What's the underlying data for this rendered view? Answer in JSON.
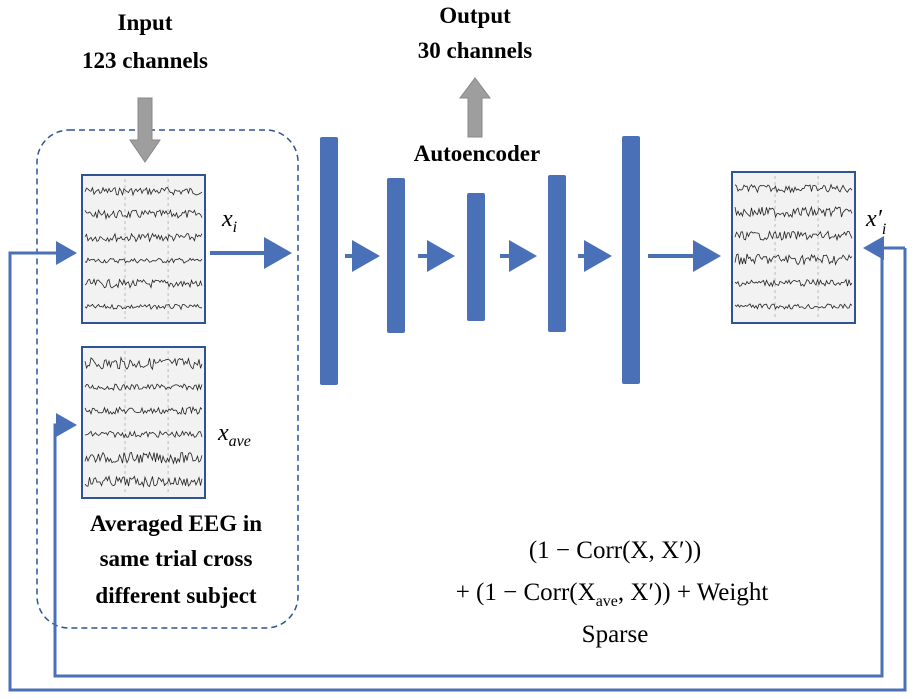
{
  "input": {
    "title": "Input",
    "channels": "123 channels"
  },
  "output": {
    "title": "Output",
    "channels": "30 channels"
  },
  "autoencoder": "Autoencoder",
  "labels": {
    "x_i": {
      "base": "x",
      "sub": "i"
    },
    "x_ave": {
      "base": "x",
      "sub": "ave"
    },
    "x_prime_i": {
      "base": "x′",
      "sub": "i"
    }
  },
  "averaged_caption": [
    "Averaged EEG in",
    "same trial cross",
    "different subject"
  ],
  "loss": {
    "line1": "(1 − Corr(X, X′))",
    "line2": {
      "before": "+ (1 − Corr(X",
      "sub": "ave",
      "after": ", X′)) + Weight"
    },
    "line3": "Sparse"
  }
}
